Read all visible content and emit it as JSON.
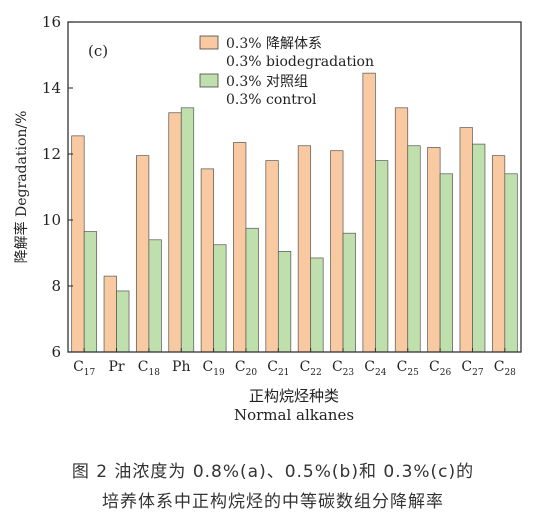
{
  "chart_data": {
    "type": "bar",
    "panel_label": "(c)",
    "categories": [
      {
        "base": "C",
        "sub": "17"
      },
      {
        "base": "Pr",
        "sub": ""
      },
      {
        "base": "C",
        "sub": "18"
      },
      {
        "base": "Ph",
        "sub": ""
      },
      {
        "base": "C",
        "sub": "19"
      },
      {
        "base": "C",
        "sub": "20"
      },
      {
        "base": "C",
        "sub": "21"
      },
      {
        "base": "C",
        "sub": "22"
      },
      {
        "base": "C",
        "sub": "23"
      },
      {
        "base": "C",
        "sub": "24"
      },
      {
        "base": "C",
        "sub": "25"
      },
      {
        "base": "C",
        "sub": "26"
      },
      {
        "base": "C",
        "sub": "27"
      },
      {
        "base": "C",
        "sub": "28"
      }
    ],
    "series": [
      {
        "name_line1": "0.3% 降解体系",
        "name_line2": "0.3% biodegradation",
        "color": "#f9c9a2",
        "values": [
          12.55,
          8.3,
          11.95,
          13.25,
          11.55,
          12.35,
          11.8,
          12.25,
          12.1,
          14.45,
          13.4,
          12.2,
          12.8,
          11.95
        ]
      },
      {
        "name_line1": "0.3% 对照组",
        "name_line2": "0.3% control",
        "color": "#bfe0ad",
        "values": [
          9.65,
          7.85,
          9.4,
          13.4,
          9.25,
          9.75,
          9.05,
          8.85,
          9.6,
          11.8,
          12.25,
          11.4,
          12.3,
          11.4
        ]
      }
    ],
    "ylim": [
      6,
      16
    ],
    "yticks": [
      6,
      8,
      10,
      12,
      14,
      16
    ],
    "ylabel": "降解率 Degradation/%",
    "xlabel_line1": "正构烷烃种类",
    "xlabel_line2": "Normal alkanes",
    "legend_position": "top-right"
  },
  "caption": {
    "line1": "图 2   油浓度为 0.8%(a)、0.5%(b)和 0.3%(c)的",
    "line2": "培养体系中正构烷烃的中等碳数组分降解率"
  }
}
